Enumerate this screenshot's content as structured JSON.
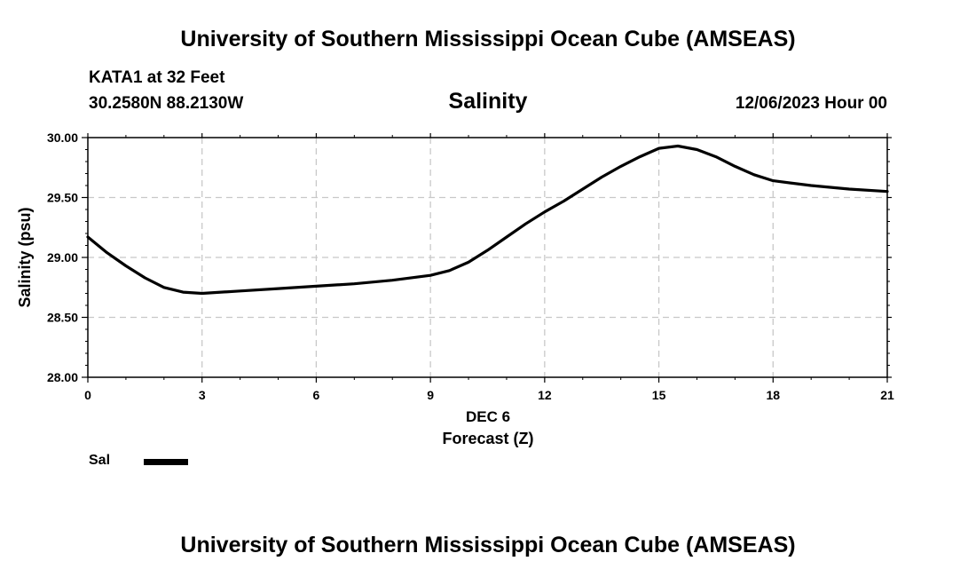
{
  "header": {
    "title": "University of Southern Mississippi Ocean Cube (AMSEAS)",
    "station": "KATA1 at 32 Feet",
    "coords": "30.2580N  88.2130W",
    "timestamp": "12/06/2023 Hour 00"
  },
  "footer": {
    "title": "University of Southern Mississippi Ocean Cube (AMSEAS)"
  },
  "chart_data": {
    "type": "line",
    "title": "Salinity",
    "xlabel_line1": "DEC 6",
    "xlabel": "Forecast (Z)",
    "ylabel": "Salinity (psu)",
    "xlim": [
      0,
      21
    ],
    "ylim": [
      28.0,
      30.0
    ],
    "xticks": [
      0,
      3,
      6,
      9,
      12,
      15,
      18,
      21
    ],
    "yticks": [
      28.0,
      28.5,
      29.0,
      29.5,
      30.0
    ],
    "ytick_labels": [
      "28.00",
      "28.50",
      "29.00",
      "29.50",
      "30.00"
    ],
    "grid": true,
    "legend": {
      "position": "bottom-left",
      "entries": [
        "Sal"
      ]
    },
    "series": [
      {
        "name": "Sal",
        "color": "#000000",
        "x": [
          0,
          0.5,
          1,
          1.5,
          2,
          2.5,
          3,
          4,
          5,
          6,
          7,
          8,
          9,
          9.5,
          10,
          10.5,
          11,
          11.5,
          12,
          12.5,
          13,
          13.5,
          14,
          14.5,
          15,
          15.5,
          16,
          16.5,
          17,
          17.5,
          18,
          19,
          20,
          21
        ],
        "values": [
          29.17,
          29.04,
          28.93,
          28.83,
          28.75,
          28.71,
          28.7,
          28.72,
          28.74,
          28.76,
          28.78,
          28.81,
          28.85,
          28.89,
          28.96,
          29.06,
          29.17,
          29.28,
          29.38,
          29.47,
          29.57,
          29.67,
          29.76,
          29.84,
          29.91,
          29.93,
          29.9,
          29.84,
          29.76,
          29.69,
          29.64,
          29.6,
          29.57,
          29.55
        ]
      }
    ]
  }
}
